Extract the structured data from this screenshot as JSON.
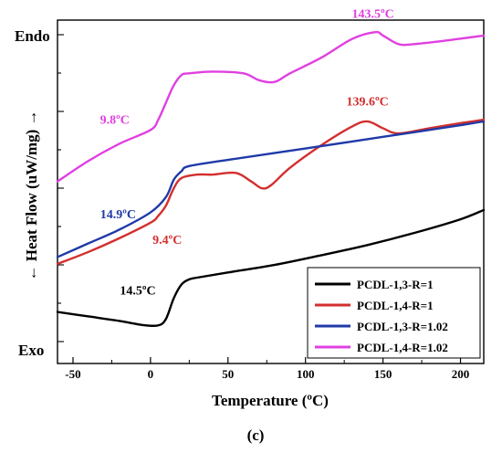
{
  "chart_data": {
    "type": "line",
    "title": "",
    "xlabel": "Temperature (ºC)",
    "ylabel": "← Heat Flow (uW/mg) →",
    "y_top_label": "Endo",
    "y_bottom_label": "Exo",
    "panel_label": "(c)",
    "xlim": [
      -60,
      215
    ],
    "ylim": [
      0,
      100
    ],
    "x_ticks": [
      -50,
      0,
      50,
      100,
      150,
      200
    ],
    "y_tick_labels_shown": false,
    "legend_position": "bottom-right",
    "series": [
      {
        "name": "PCDL-1,3-R=1",
        "color": "#000000",
        "x": [
          -60,
          -40,
          -20,
          -5,
          5,
          10,
          15,
          20,
          25,
          30,
          50,
          80,
          110,
          140,
          170,
          200,
          215
        ],
        "y": [
          15,
          13.7,
          12.4,
          11.2,
          11.1,
          13,
          19,
          23,
          24.5,
          25,
          26.5,
          28.7,
          31.5,
          34.5,
          38,
          42,
          44.7
        ]
      },
      {
        "name": "PCDL-1,4-R=1",
        "color": "#d32f2f",
        "x": [
          -60,
          -40,
          -20,
          0,
          5,
          10,
          15,
          20,
          30,
          40,
          55,
          65,
          72,
          78,
          90,
          110,
          130,
          140,
          150,
          160,
          180,
          200,
          215
        ],
        "y": [
          29,
          32.5,
          36.5,
          41,
          43,
          46,
          51,
          54,
          55,
          55,
          55.5,
          53,
          51,
          52,
          57,
          63.5,
          69,
          70.5,
          68.5,
          67,
          68.5,
          70,
          71
        ]
      },
      {
        "name": "PCDL-1,3-R=1.02",
        "color": "#1f3aa8",
        "x": [
          -60,
          -40,
          -20,
          0,
          10,
          15,
          20,
          25,
          50,
          100,
          150,
          200,
          215
        ],
        "y": [
          31,
          35,
          39,
          44,
          48.5,
          53.5,
          56,
          57.5,
          59.3,
          62.6,
          66,
          69.4,
          70.5
        ]
      },
      {
        "name": "PCDL-1,4-R=1.02",
        "color": "#e040e0",
        "x": [
          -60,
          -40,
          -20,
          0,
          5,
          10,
          15,
          20,
          25,
          40,
          60,
          70,
          80,
          90,
          110,
          130,
          145,
          150,
          160,
          170,
          190,
          215
        ],
        "y": [
          53,
          59,
          64,
          68,
          71,
          76,
          81,
          84,
          84.5,
          85,
          84.5,
          82.5,
          82,
          84.5,
          89,
          94.5,
          96.5,
          95.5,
          93,
          93,
          94,
          95.5
        ]
      }
    ],
    "annotations": [
      {
        "text": "14.5ºC",
        "color": "#000000",
        "x": -7,
        "y": 18
      },
      {
        "text": "9.4ºC",
        "color": "#d32f2f",
        "x": 12,
        "y": 38
      },
      {
        "text": "14.9ºC",
        "color": "#1f3aa8",
        "x": -15,
        "y": 46
      },
      {
        "text": "9.8ºC",
        "color": "#e040e0",
        "x": -16,
        "y": 72
      },
      {
        "text": "139.6ºC",
        "color": "#d32f2f",
        "x": 140,
        "y": 73
      },
      {
        "text": "143.5ºC",
        "color": "#e040e0",
        "x": 143.5,
        "y": 98.5
      }
    ]
  }
}
